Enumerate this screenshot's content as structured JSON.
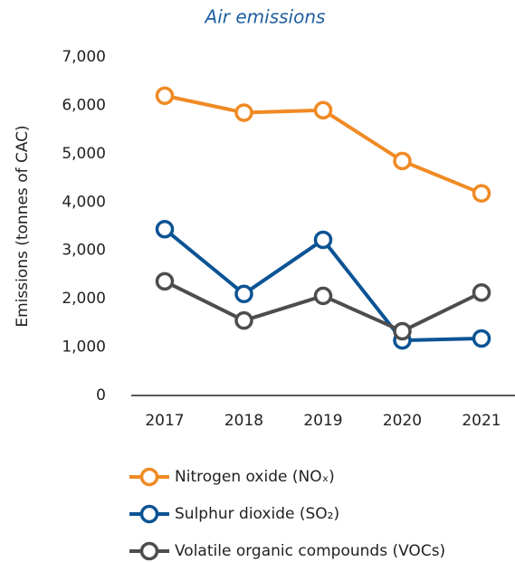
{
  "chart_data": {
    "type": "line",
    "title": "Air emissions",
    "y_label": "Emissions (tonnes of CAC)",
    "categories": [
      "2017",
      "2018",
      "2019",
      "2020",
      "2021"
    ],
    "series": [
      {
        "name": "Nitrogen oxide (NOₓ)",
        "color": "#f08a24",
        "values": [
          6200,
          5850,
          5900,
          4850,
          4180
        ]
      },
      {
        "name": "Sulphur dioxide (SO₂)",
        "color": "#0b5394",
        "values": [
          3440,
          2100,
          3220,
          1140,
          1180
        ]
      },
      {
        "name": "Volatile organic compounds (VOCs)",
        "color": "#4d4d4d",
        "values": [
          2360,
          1550,
          2060,
          1330,
          2130
        ]
      }
    ],
    "ylim": [
      0,
      7000
    ],
    "yticks": [
      0,
      {
        "value": 1000,
        "label": "1,000"
      },
      {
        "value": 2000,
        "label": "2,000"
      },
      {
        "value": 3000,
        "label": "3,000"
      },
      {
        "value": 4000,
        "label": "4,000"
      },
      {
        "value": 5000,
        "label": "5,000"
      },
      {
        "value": 6000,
        "label": "6,000"
      },
      {
        "value": 7000,
        "label": "7,000"
      }
    ],
    "grid": false
  }
}
